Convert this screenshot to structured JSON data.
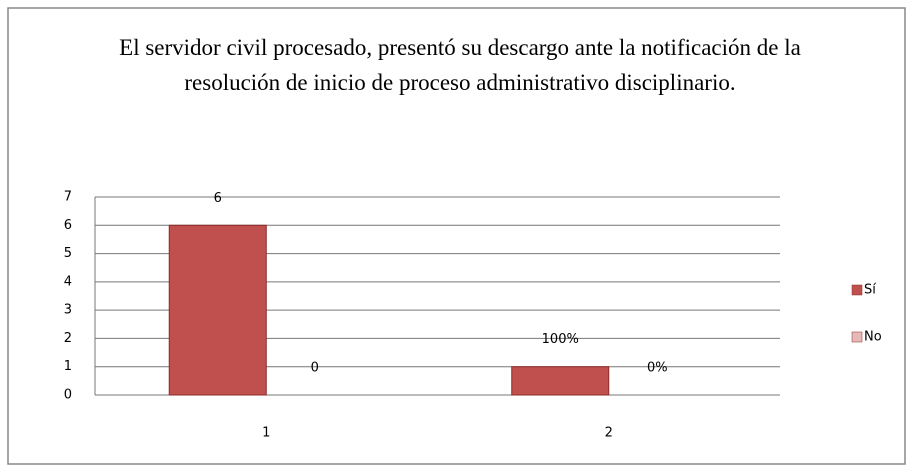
{
  "chart_data": {
    "type": "bar",
    "title": "El servidor civil procesado, presentó su descargo ante la notificación de la resolución de inicio de proceso administrativo disciplinario.",
    "categories": [
      "1",
      "2"
    ],
    "series": [
      {
        "name": "Sí",
        "color": "#c0504d",
        "values": [
          6,
          1
        ],
        "value_labels": [
          "6",
          "100%"
        ]
      },
      {
        "name": "No",
        "color": "#e6b9b8",
        "values": [
          0,
          0
        ],
        "value_labels": [
          "0",
          "0%"
        ]
      }
    ],
    "ylim": [
      0,
      7
    ],
    "yticks": [
      0,
      1,
      2,
      3,
      4,
      5,
      6,
      7
    ],
    "grid": true,
    "legend": "right"
  }
}
